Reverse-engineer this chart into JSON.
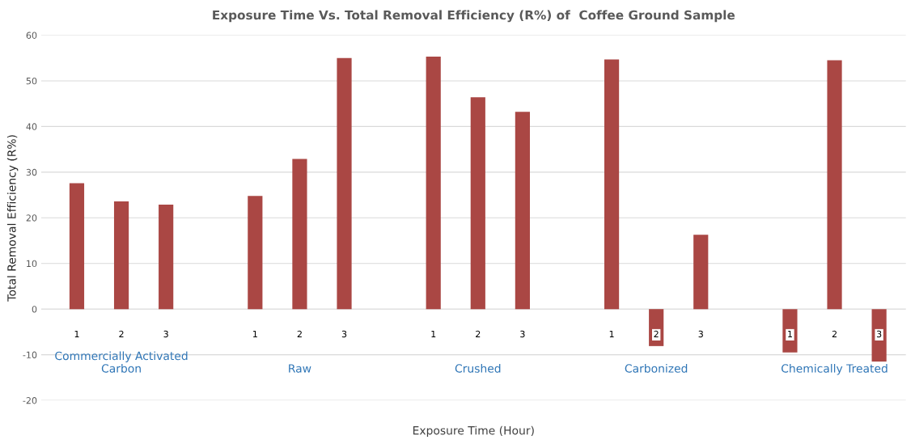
{
  "chart_data": {
    "type": "bar",
    "title": "Exposure Time Vs. Total Removal Efficiency (R%) of  Coffee Ground Sample",
    "xlabel": "Exposure Time (Hour)",
    "ylabel": "Total Removal Efficiency (R%)",
    "categories": [
      "1",
      "2",
      "3",
      null,
      "1",
      "2",
      "3",
      null,
      "1",
      "2",
      "3",
      null,
      "1",
      "2",
      "3",
      null,
      "1",
      "2",
      "3"
    ],
    "values": [
      27.6,
      23.6,
      22.9,
      null,
      24.8,
      32.9,
      55.0,
      null,
      55.3,
      46.4,
      43.2,
      null,
      54.7,
      -8.1,
      16.3,
      null,
      -9.5,
      54.5,
      -11.5
    ],
    "color": "#aa4744",
    "annotations": [
      "Commercially Activated\nCarbon",
      "Raw",
      "Crushed",
      "Carbonized",
      "Chemically Treated"
    ],
    "ylim": [
      -20,
      60
    ],
    "yticks": [
      -20,
      -10,
      0,
      10,
      20,
      30,
      40,
      50,
      60
    ],
    "grid": "y"
  }
}
